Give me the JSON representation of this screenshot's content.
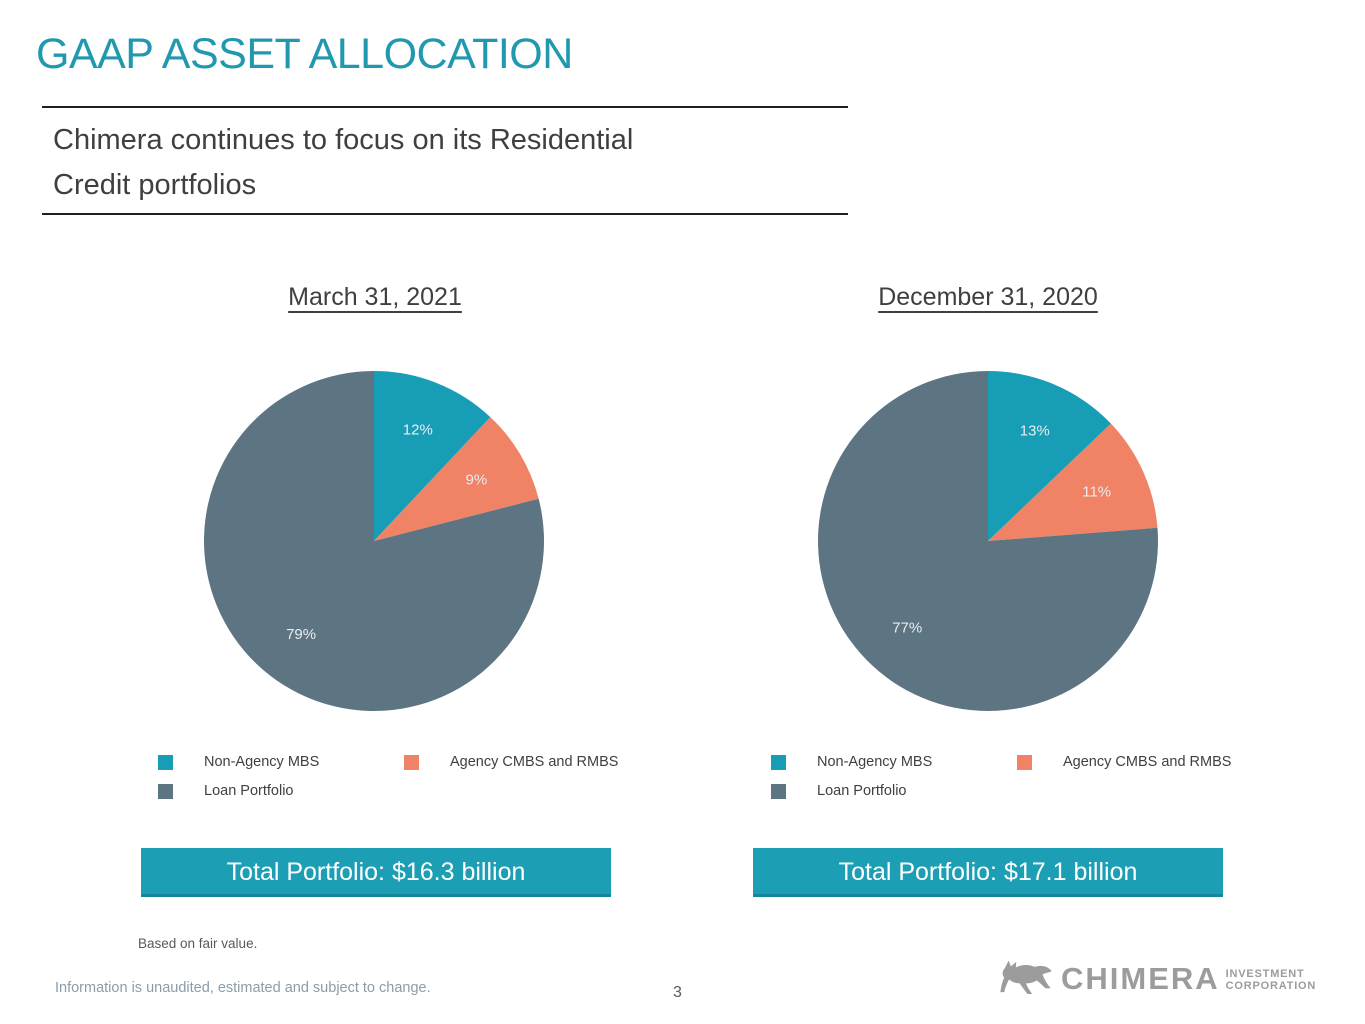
{
  "slide": {
    "title": "GAAP ASSET ALLOCATION",
    "subtitle_line1": "Chimera continues to focus on its Residential",
    "subtitle_line2": "Credit portfolios"
  },
  "colors": {
    "title_teal": "#2099AF",
    "banner_teal": "#1C9FB4",
    "banner_edge": "#15879C",
    "pie_teal": "#179EB6",
    "pie_orange": "#F08366",
    "pie_slate": "#5D7483",
    "slice_label": "#E9EDEF"
  },
  "legend": {
    "items": [
      {
        "label": "Non-Agency MBS",
        "color": "#179EB6"
      },
      {
        "label": "Agency CMBS and RMBS",
        "color": "#F08366"
      },
      {
        "label": "Loan Portfolio",
        "color": "#5D7483"
      }
    ]
  },
  "chart_data": [
    {
      "type": "pie",
      "title": "March 31, 2021",
      "labels": [
        "Non-Agency MBS",
        "Agency CMBS and RMBS",
        "Loan Portfolio"
      ],
      "values": [
        12,
        9,
        79
      ],
      "slice_labels": [
        "12%",
        "9%",
        "79%"
      ],
      "colors": [
        "#179EB6",
        "#F08366",
        "#5D7483"
      ],
      "start_angle_deg": 0,
      "direction": "clockwise",
      "legend_position": "bottom",
      "banner_label": "Total Portfolio: $16.3 billion"
    },
    {
      "type": "pie",
      "title": "December 31, 2020",
      "labels": [
        "Non-Agency MBS",
        "Agency CMBS and RMBS",
        "Loan Portfolio"
      ],
      "values": [
        13,
        11,
        77
      ],
      "slice_labels": [
        "13%",
        "11%",
        "77%"
      ],
      "colors": [
        "#179EB6",
        "#F08366",
        "#5D7483"
      ],
      "start_angle_deg": 0,
      "direction": "clockwise",
      "legend_position": "bottom",
      "banner_label": "Total Portfolio: $17.1 billion"
    }
  ],
  "footer": {
    "note1": "Based on fair value.",
    "note2": "Information is unaudited, estimated and subject to change.",
    "page_number": "3"
  },
  "logo": {
    "name": "CHIMERA",
    "sub_line1": "INVESTMENT",
    "sub_line2": "CORPORATION"
  }
}
